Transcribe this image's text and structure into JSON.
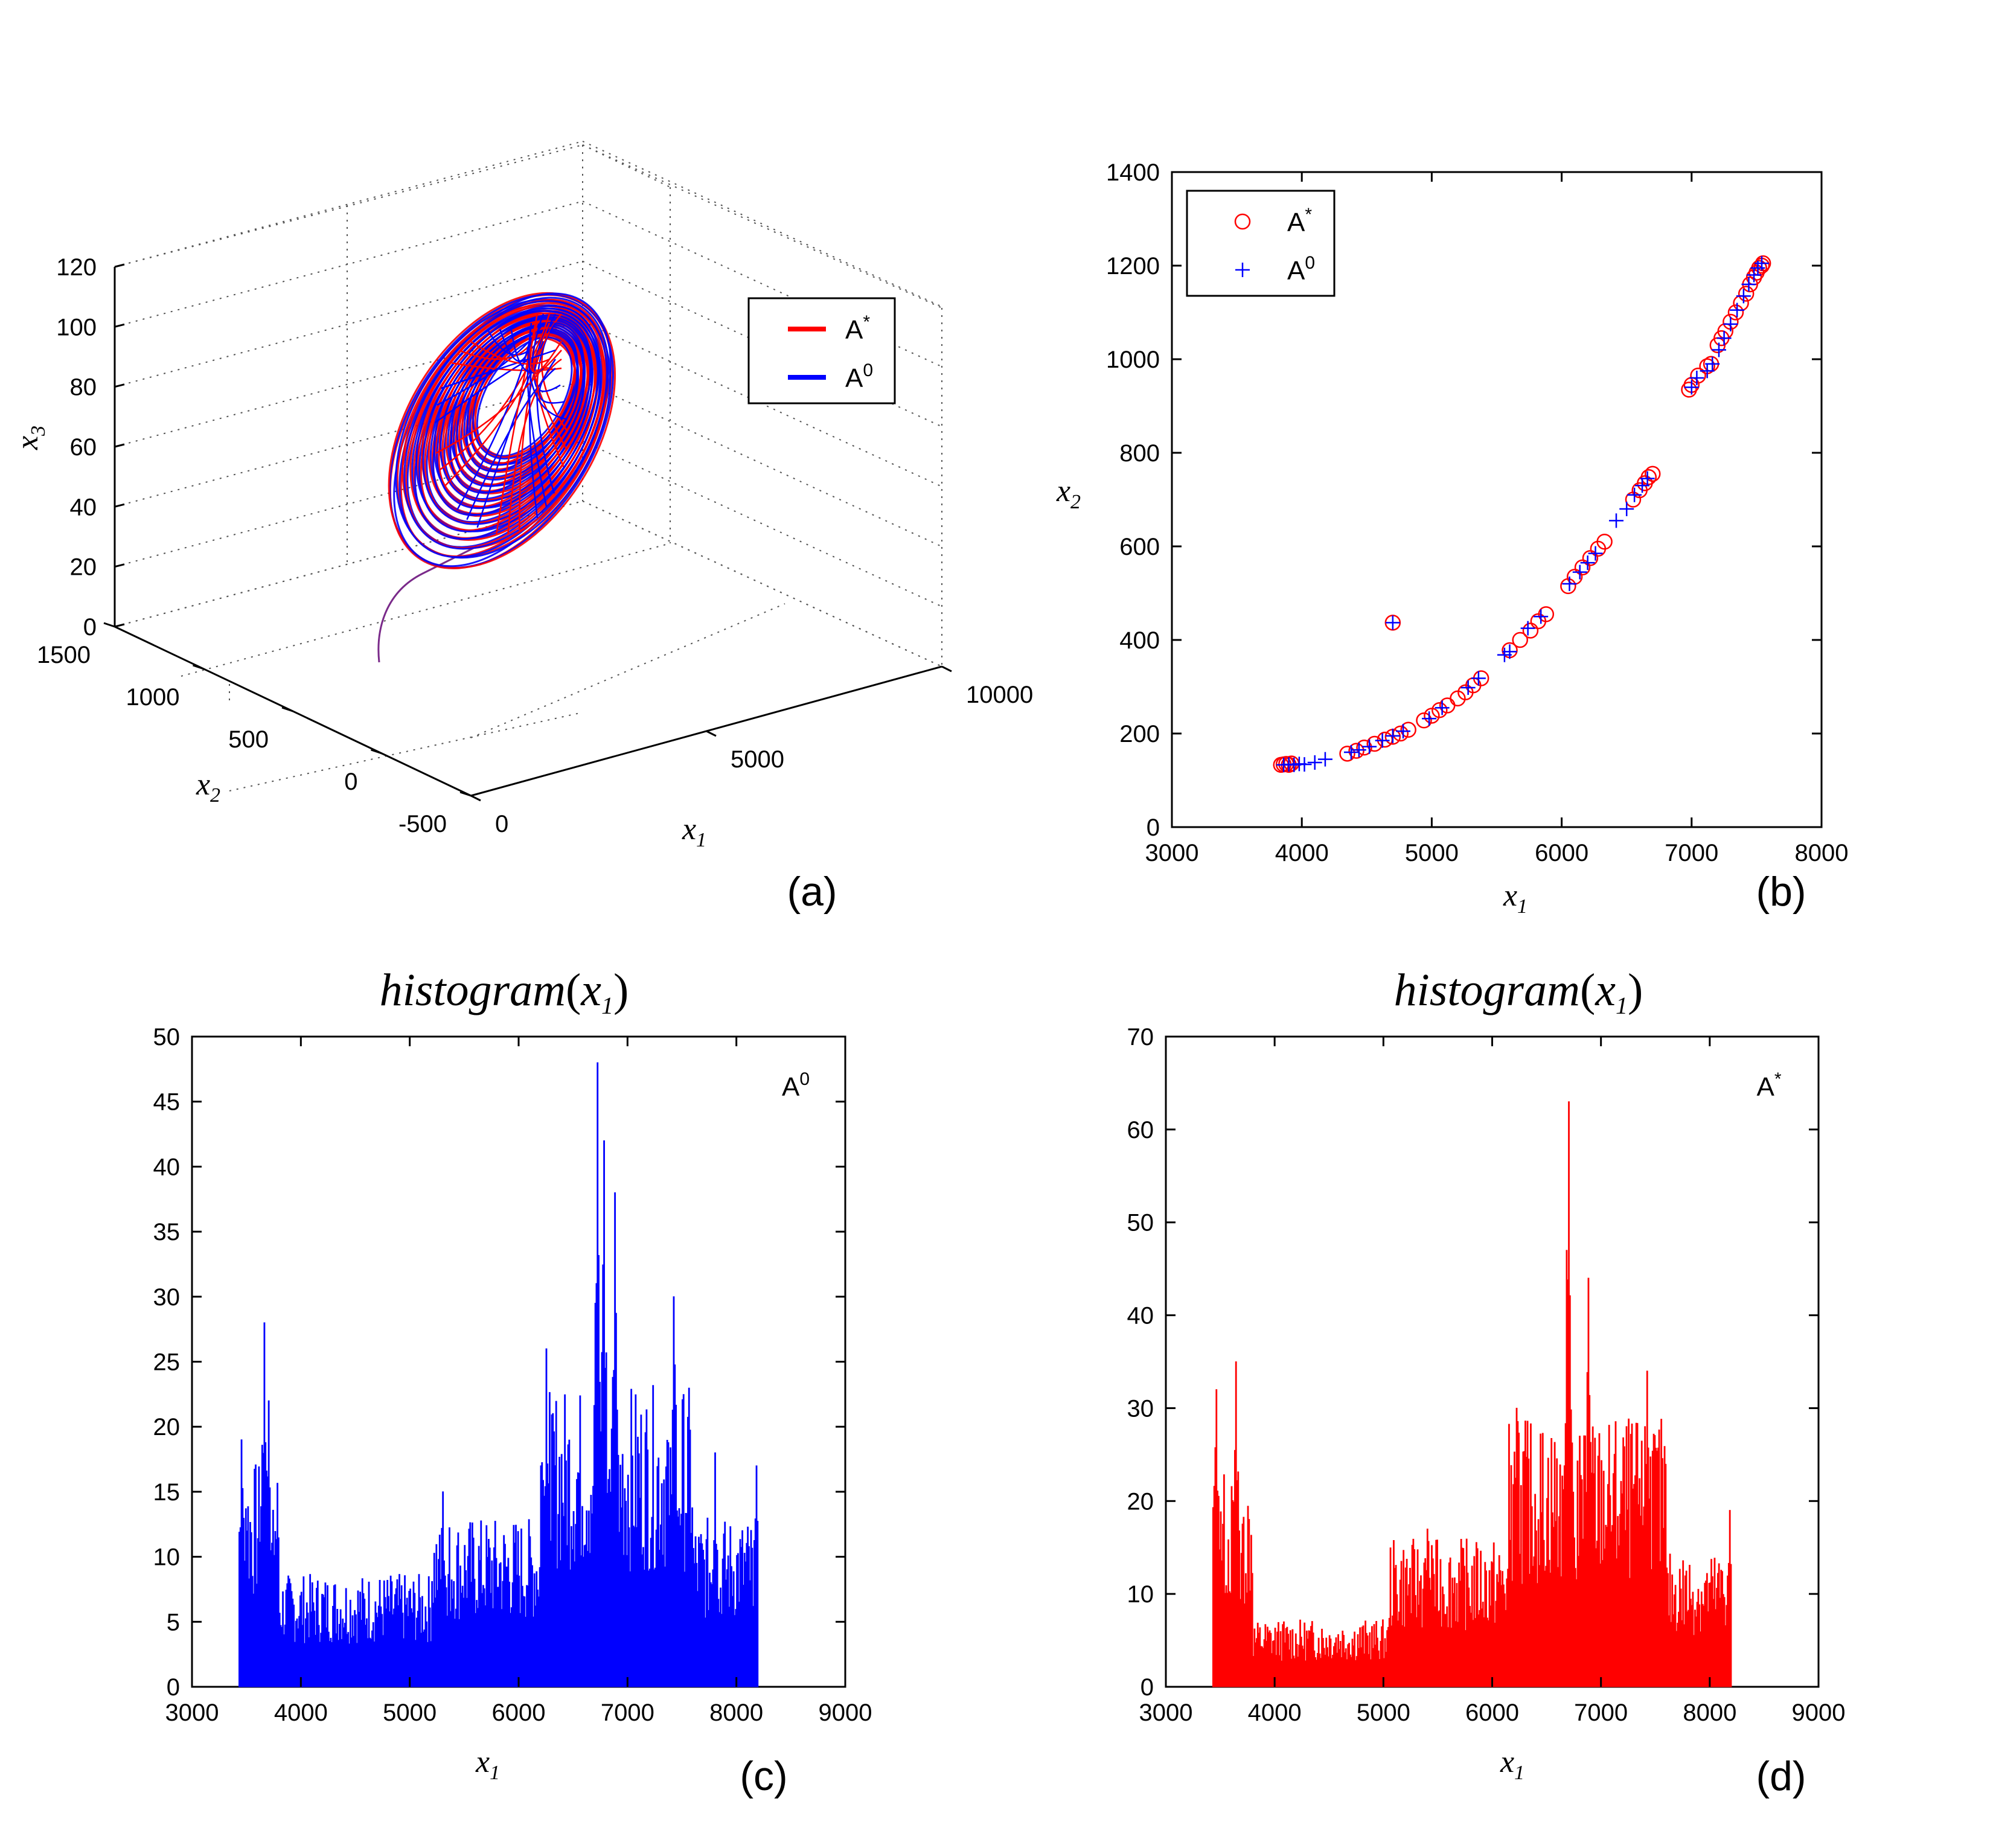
{
  "chart_data": [
    {
      "panel": "(a)",
      "type": "line",
      "subtype": "3d-trajectory",
      "xlabel": "x_1",
      "ylabel": "x_2",
      "zlabel": "x_3",
      "xlim": [
        0,
        10000
      ],
      "ylim": [
        -500,
        1500
      ],
      "zlim": [
        0,
        120
      ],
      "x_ticks": [
        "0",
        "5000",
        "10000"
      ],
      "y_ticks": [
        "-500",
        "0",
        "500",
        "1000",
        "1500"
      ],
      "z_ticks": [
        "0",
        "20",
        "40",
        "60",
        "80",
        "100",
        "120"
      ],
      "grid": true,
      "legend": {
        "position": "top-right",
        "entries": [
          {
            "label": "A",
            "sup": "*",
            "color": "#ff0000"
          },
          {
            "label": "A",
            "sup": "0",
            "color": "#0000ff"
          }
        ]
      },
      "series": [
        {
          "name": "A*",
          "color": "#ff0000",
          "description_values": {
            "transient_start": [
              0,
              0,
              0
            ]
          }
        },
        {
          "name": "A0",
          "color": "#0000ff"
        }
      ]
    },
    {
      "panel": "(b)",
      "type": "scatter",
      "xlabel": "x_1",
      "ylabel": "x_2",
      "xlim": [
        3000,
        8000
      ],
      "ylim": [
        0,
        1400
      ],
      "x_ticks": [
        "3000",
        "4000",
        "5000",
        "6000",
        "7000",
        "8000"
      ],
      "y_ticks": [
        "0",
        "200",
        "400",
        "600",
        "800",
        "1000",
        "1200",
        "1400"
      ],
      "legend": {
        "position": "top-left",
        "entries": [
          {
            "label": "A",
            "sup": "*",
            "marker": "circle",
            "color": "#ff0000"
          },
          {
            "label": "A",
            "sup": "0",
            "marker": "plus",
            "color": "#0000ff"
          }
        ]
      },
      "series": [
        {
          "name": "A*",
          "marker": "circle",
          "color": "#ff0000",
          "x": [
            3840,
            3860,
            3880,
            3900,
            3920,
            4350,
            4420,
            4480,
            4560,
            4640,
            4700,
            4760,
            4820,
            4940,
            5000,
            5060,
            5120,
            5200,
            5260,
            5320,
            5380,
            5600,
            5680,
            5760,
            5820,
            5880,
            6050,
            6100,
            6160,
            6220,
            6280,
            6330,
            6550,
            6600,
            6640,
            6670,
            6700,
            4700,
            6980,
            7000,
            7050,
            7120,
            7150,
            7200,
            7230,
            7260,
            7300,
            7340,
            7380,
            7420,
            7450,
            7480,
            7500,
            7520,
            7540,
            7550
          ],
          "y": [
            133,
            134,
            135,
            133,
            136,
            157,
            163,
            170,
            178,
            187,
            193,
            200,
            208,
            228,
            238,
            250,
            260,
            275,
            288,
            303,
            318,
            378,
            400,
            420,
            440,
            455,
            515,
            535,
            555,
            575,
            595,
            610,
            700,
            720,
            735,
            748,
            755,
            437,
            935,
            945,
            965,
            985,
            990,
            1030,
            1045,
            1060,
            1080,
            1100,
            1120,
            1140,
            1160,
            1175,
            1185,
            1195,
            1200,
            1205
          ]
        },
        {
          "name": "A0",
          "marker": "plus",
          "color": "#0000ff",
          "x": [
            3860,
            3900,
            3940,
            3980,
            4020,
            4100,
            4180,
            4380,
            4440,
            4520,
            4620,
            4700,
            4780,
            4980,
            5080,
            5280,
            5360,
            5560,
            5600,
            5740,
            5840,
            6060,
            6140,
            6200,
            6260,
            6420,
            6500,
            6560,
            6620,
            6660,
            4700,
            7000,
            7040,
            7120,
            7160,
            7210,
            7250,
            7300,
            7350,
            7400,
            7440,
            7480,
            7510,
            7540
          ],
          "y": [
            133,
            134,
            133,
            135,
            134,
            138,
            145,
            160,
            165,
            172,
            185,
            195,
            205,
            232,
            255,
            298,
            318,
            368,
            375,
            425,
            450,
            520,
            545,
            565,
            585,
            655,
            680,
            710,
            730,
            745,
            437,
            940,
            960,
            975,
            990,
            1020,
            1045,
            1075,
            1105,
            1135,
            1160,
            1180,
            1195,
            1205
          ]
        }
      ]
    },
    {
      "panel": "(c)",
      "type": "bar",
      "subtype": "histogram",
      "title": "histogram",
      "title_arg": "x",
      "title_arg_sub": "1",
      "xlabel": "x_1",
      "ylabel": "",
      "xlim": [
        3000,
        9000
      ],
      "ylim": [
        0,
        50
      ],
      "x_ticks": [
        "3000",
        "4000",
        "5000",
        "6000",
        "7000",
        "8000",
        "9000"
      ],
      "y_ticks": [
        "0",
        "5",
        "10",
        "15",
        "20",
        "25",
        "30",
        "35",
        "40",
        "45",
        "50"
      ],
      "annotation": {
        "label": "A",
        "sup": "0"
      },
      "color": "#0000ff",
      "bin_range": [
        3430,
        8200
      ],
      "peaks": [
        {
          "x": 3450,
          "y": 19
        },
        {
          "x": 3660,
          "y": 28
        },
        {
          "x": 3700,
          "y": 22
        },
        {
          "x": 5300,
          "y": 15
        },
        {
          "x": 6250,
          "y": 26
        },
        {
          "x": 6720,
          "y": 48
        },
        {
          "x": 6780,
          "y": 42
        },
        {
          "x": 6880,
          "y": 38
        },
        {
          "x": 7420,
          "y": 30
        },
        {
          "x": 7800,
          "y": 18
        },
        {
          "x": 8180,
          "y": 17
        }
      ],
      "baseline_levels": [
        {
          "from": 3430,
          "to": 3800,
          "y": 12
        },
        {
          "from": 3800,
          "to": 5200,
          "y": 6
        },
        {
          "from": 5200,
          "to": 6200,
          "y": 9
        },
        {
          "from": 6200,
          "to": 7600,
          "y": 16
        },
        {
          "from": 7600,
          "to": 8200,
          "y": 9
        }
      ]
    },
    {
      "panel": "(d)",
      "type": "bar",
      "subtype": "histogram",
      "title": "histogram",
      "title_arg": "x",
      "title_arg_sub": "1",
      "xlabel": "x_1",
      "ylabel": "",
      "xlim": [
        3000,
        9000
      ],
      "ylim": [
        0,
        70
      ],
      "x_ticks": [
        "3000",
        "4000",
        "5000",
        "6000",
        "7000",
        "8000",
        "9000"
      ],
      "y_ticks": [
        "0",
        "10",
        "20",
        "30",
        "40",
        "50",
        "60",
        "70"
      ],
      "annotation": {
        "label": "A",
        "sup": "*"
      },
      "color": "#ff0000",
      "bin_range": [
        3430,
        8200
      ],
      "peaks": [
        {
          "x": 3460,
          "y": 32
        },
        {
          "x": 3640,
          "y": 35
        },
        {
          "x": 5400,
          "y": 17
        },
        {
          "x": 6220,
          "y": 30
        },
        {
          "x": 6700,
          "y": 63
        },
        {
          "x": 6680,
          "y": 47
        },
        {
          "x": 6880,
          "y": 44
        },
        {
          "x": 7420,
          "y": 34
        },
        {
          "x": 8180,
          "y": 19
        }
      ],
      "baseline_levels": [
        {
          "from": 3430,
          "to": 3800,
          "y": 16
        },
        {
          "from": 3800,
          "to": 5050,
          "y": 5
        },
        {
          "from": 5050,
          "to": 6150,
          "y": 11
        },
        {
          "from": 6150,
          "to": 7600,
          "y": 20
        },
        {
          "from": 7600,
          "to": 8200,
          "y": 10
        }
      ]
    }
  ]
}
